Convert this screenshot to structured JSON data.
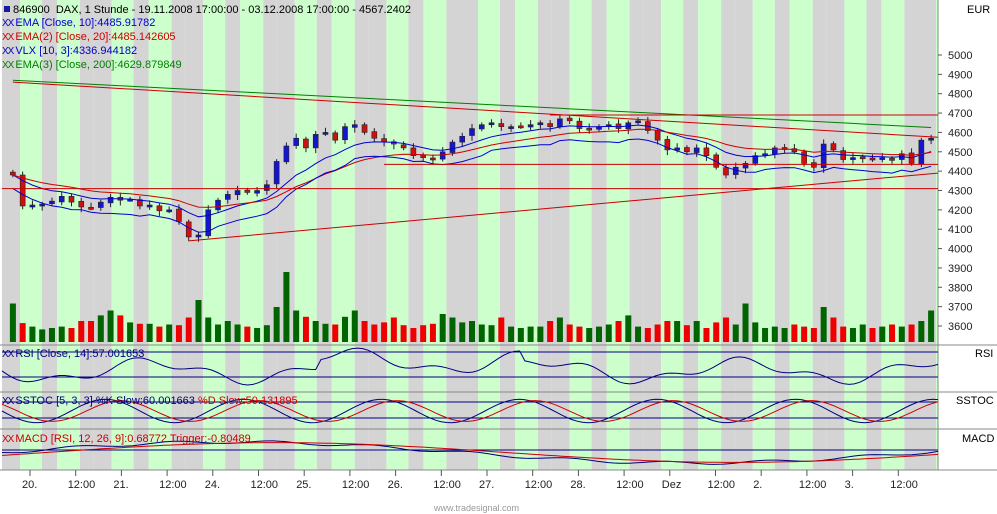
{
  "header": {
    "symbol": "846900",
    "title_rest": "DAX, 1 Stunde - 19.11.2008 17:00:00 - 03.12.2008 17:00:00 - 4567.2402"
  },
  "price_legend": [
    {
      "marker": "XX",
      "text": "EMA [Close, 10]:4485.91782",
      "color": "#0000cc"
    },
    {
      "marker": "XX",
      "text": "EMA(2) [Close, 20]:4485.142605",
      "color": "#cc0000"
    },
    {
      "marker": "XX",
      "text": "VLX [10, 3]:4336.944182",
      "color": "#0000cc"
    },
    {
      "marker": "XX",
      "text": "EMA(3) [Close, 200]:4629.879849",
      "color": "#008000"
    }
  ],
  "panels": {
    "price_currency": "EUR",
    "rsi": {
      "label": "RSI",
      "legend_marker": "XX",
      "legend_text": "RSI [Close, 14]:57.001653"
    },
    "sstoc": {
      "label": "SSTOC",
      "legend_marker": "XX",
      "legend_text_k": "SSTOC [5, 3, 3] %K Slow:60.001663",
      "legend_text_d": "%D Slow:50.131895"
    },
    "macd": {
      "label": "MACD",
      "legend_marker": "XX",
      "legend_text": "MACD [RSI, 12, 26, 9]:0.68772 Trigger:-0.80489"
    }
  },
  "watermark": "www.tradesignal.com",
  "colors": {
    "band_green": "#ccffcc",
    "band_grey": "#d4d4d4",
    "up_candle": "#1515d0",
    "down_candle": "#d01010",
    "ema10": "#0000cc",
    "ema20": "#cc0000",
    "ema200": "#008000",
    "volume_up": "#006400",
    "volume_down": "#ee0000"
  },
  "chart_data": [
    {
      "type": "candlestick",
      "title": "846900 DAX, 1 Stunde",
      "ylabel": "EUR",
      "ylim": [
        3520,
        5200
      ],
      "y_ticks": [
        3600,
        3700,
        3800,
        3900,
        4000,
        4100,
        4200,
        4300,
        4400,
        4500,
        4600,
        4700,
        4800,
        4900,
        5000
      ],
      "x_tick_labels": [
        "20.",
        "12:00",
        "21.",
        "12:00",
        "24.",
        "12:00",
        "25.",
        "12:00",
        "26.",
        "12:00",
        "27.",
        "12:00",
        "28.",
        "12:00",
        "Dez",
        "12:00",
        "2.",
        "12:00",
        "3.",
        "12:00"
      ],
      "grid": false,
      "candles_close": [
        4380,
        4220,
        4225,
        4230,
        4245,
        4270,
        4240,
        4215,
        4210,
        4240,
        4265,
        4250,
        4255,
        4220,
        4225,
        4195,
        4200,
        4140,
        4060,
        4070,
        4200,
        4250,
        4280,
        4300,
        4290,
        4300,
        4330,
        4450,
        4530,
        4570,
        4520,
        4590,
        4600,
        4560,
        4630,
        4640,
        4600,
        4570,
        4550,
        4540,
        4520,
        4480,
        4470,
        4460,
        4500,
        4550,
        4580,
        4620,
        4640,
        4650,
        4630,
        4630,
        4630,
        4640,
        4650,
        4630,
        4670,
        4660,
        4620,
        4620,
        4630,
        4640,
        4620,
        4650,
        4660,
        4610,
        4560,
        4510,
        4520,
        4500,
        4520,
        4480,
        4420,
        4380,
        4420,
        4440,
        4480,
        4490,
        4520,
        4520,
        4500,
        4440,
        4420,
        4540,
        4510,
        4460,
        4470,
        4470,
        4460,
        4470,
        4460,
        4490,
        4440,
        4560,
        4570
      ],
      "series": [
        {
          "name": "EMA [Close, 10]",
          "last": 4485.91782
        },
        {
          "name": "EMA(2) [Close, 20]",
          "last": 4485.142605
        },
        {
          "name": "VLX [10, 3]",
          "last": 4336.944182
        },
        {
          "name": "EMA(3) [Close, 200]",
          "last": 4629.879849
        }
      ],
      "volume_relative": [
        0.55,
        0.27,
        0.22,
        0.18,
        0.2,
        0.22,
        0.2,
        0.3,
        0.3,
        0.38,
        0.45,
        0.38,
        0.28,
        0.26,
        0.26,
        0.22,
        0.25,
        0.24,
        0.35,
        0.6,
        0.35,
        0.25,
        0.3,
        0.25,
        0.22,
        0.2,
        0.24,
        0.5,
        1.0,
        0.45,
        0.36,
        0.3,
        0.26,
        0.25,
        0.36,
        0.45,
        0.3,
        0.25,
        0.28,
        0.35,
        0.24,
        0.2,
        0.24,
        0.26,
        0.4,
        0.35,
        0.28,
        0.3,
        0.25,
        0.24,
        0.35,
        0.22,
        0.2,
        0.22,
        0.22,
        0.3,
        0.35,
        0.25,
        0.22,
        0.2,
        0.22,
        0.25,
        0.3,
        0.38,
        0.22,
        0.2,
        0.25,
        0.3,
        0.3,
        0.24,
        0.3,
        0.2,
        0.28,
        0.35,
        0.25,
        0.55,
        0.28,
        0.2,
        0.22,
        0.2,
        0.25,
        0.22,
        0.2,
        0.5,
        0.35,
        0.22,
        0.2,
        0.25,
        0.2,
        0.22,
        0.25,
        0.22,
        0.25,
        0.3,
        0.45
      ]
    },
    {
      "type": "line",
      "title": "RSI [Close, 14]",
      "last": 57.001653
    },
    {
      "type": "line",
      "title": "SSTOC [5, 3, 3]",
      "series": [
        {
          "name": "%K Slow",
          "last": 60.001663
        },
        {
          "name": "%D Slow",
          "last": 50.131895
        }
      ]
    },
    {
      "type": "line",
      "title": "MACD [RSI, 12, 26, 9]",
      "series": [
        {
          "name": "MACD",
          "last": 0.68772
        },
        {
          "name": "Trigger",
          "last": -0.80489
        }
      ]
    }
  ]
}
